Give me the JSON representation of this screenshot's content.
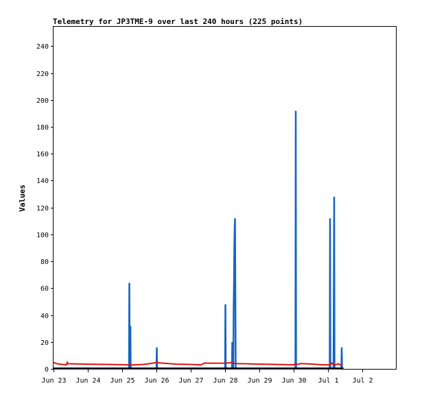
{
  "chart_data": {
    "type": "line",
    "title": "Telemetry for JP3TME-9 over last 240 hours (225 points)",
    "xlabel": "",
    "ylabel": "Values",
    "xlim": [
      0,
      10
    ],
    "ylim": [
      0,
      255
    ],
    "x_ticks": [
      {
        "x": 0,
        "label": "Jun 23"
      },
      {
        "x": 1,
        "label": "Jun 24"
      },
      {
        "x": 2,
        "label": "Jun 25"
      },
      {
        "x": 3,
        "label": "Jun 26"
      },
      {
        "x": 4,
        "label": "Jun 27"
      },
      {
        "x": 5,
        "label": "Jun 28"
      },
      {
        "x": 6,
        "label": "Jun 29"
      },
      {
        "x": 7,
        "label": "Jun 30"
      },
      {
        "x": 8,
        "label": "Jul 1"
      },
      {
        "x": 9,
        "label": "Jul 2"
      }
    ],
    "y_ticks": [
      0,
      20,
      40,
      60,
      80,
      100,
      120,
      140,
      160,
      180,
      200,
      220,
      240
    ],
    "grid": false,
    "legend": "none",
    "series": [
      {
        "color": "#1565c0",
        "points": [
          [
            0,
            0
          ],
          [
            2.2,
            0
          ],
          [
            2.21,
            64
          ],
          [
            2.22,
            0
          ],
          [
            2.24,
            32
          ],
          [
            2.25,
            0
          ],
          [
            3.0,
            0
          ],
          [
            3.01,
            16
          ],
          [
            3.02,
            0
          ],
          [
            5.0,
            0
          ],
          [
            5.01,
            48
          ],
          [
            5.02,
            0
          ],
          [
            5.2,
            0
          ],
          [
            5.21,
            20
          ],
          [
            5.22,
            0
          ],
          [
            5.24,
            0
          ],
          [
            5.25,
            45
          ],
          [
            5.26,
            63
          ],
          [
            5.27,
            90
          ],
          [
            5.28,
            106
          ],
          [
            5.29,
            112
          ],
          [
            5.3,
            56
          ],
          [
            5.31,
            0
          ],
          [
            7.05,
            0
          ],
          [
            7.06,
            192
          ],
          [
            7.07,
            0
          ],
          [
            8.05,
            0
          ],
          [
            8.06,
            112
          ],
          [
            8.07,
            0
          ],
          [
            8.16,
            0
          ],
          [
            8.17,
            64
          ],
          [
            8.18,
            128
          ],
          [
            8.19,
            0
          ],
          [
            8.39,
            0
          ],
          [
            8.4,
            16
          ],
          [
            8.41,
            0
          ]
        ]
      },
      {
        "color": "#dd1111",
        "points": [
          [
            0,
            4.8
          ],
          [
            0.1,
            3.8
          ],
          [
            0.3,
            3.2
          ],
          [
            0.38,
            3.0
          ],
          [
            0.4,
            4.8
          ],
          [
            0.42,
            3.8
          ],
          [
            0.8,
            3.6
          ],
          [
            1.2,
            3.4
          ],
          [
            1.6,
            3.3
          ],
          [
            1.9,
            3.2
          ],
          [
            2.2,
            3.0
          ],
          [
            2.3,
            2.9
          ],
          [
            2.6,
            3.3
          ],
          [
            2.8,
            3.9
          ],
          [
            3.0,
            4.7
          ],
          [
            3.2,
            4.2
          ],
          [
            3.6,
            3.5
          ],
          [
            4.0,
            3.3
          ],
          [
            4.3,
            3.0
          ],
          [
            4.4,
            4.4
          ],
          [
            4.6,
            4.2
          ],
          [
            5.0,
            4.3
          ],
          [
            5.2,
            4.6
          ],
          [
            5.3,
            4.0
          ],
          [
            5.6,
            3.8
          ],
          [
            6.0,
            3.5
          ],
          [
            6.5,
            3.3
          ],
          [
            7.0,
            3.0
          ],
          [
            7.05,
            4.0
          ],
          [
            7.1,
            3.2
          ],
          [
            7.2,
            4.0
          ],
          [
            7.5,
            3.6
          ],
          [
            7.8,
            3.1
          ],
          [
            8.05,
            3.0
          ],
          [
            8.1,
            4.5
          ],
          [
            8.15,
            3.0
          ],
          [
            8.2,
            2.8
          ],
          [
            8.3,
            3.8
          ],
          [
            8.38,
            2.6
          ],
          [
            8.42,
            4.2
          ]
        ]
      },
      {
        "color": "#000000",
        "points": [
          [
            0,
            0.5
          ],
          [
            8.45,
            0.5
          ]
        ]
      }
    ]
  }
}
